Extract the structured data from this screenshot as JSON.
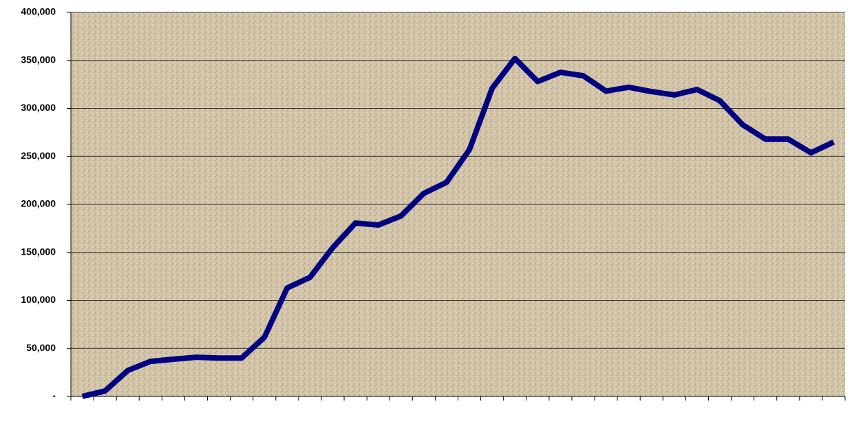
{
  "chart_data": {
    "type": "line",
    "categories": [
      null,
      null,
      null,
      null,
      null,
      null,
      null,
      null,
      null,
      null,
      null,
      null,
      null,
      null,
      null,
      null,
      null,
      null,
      null,
      null,
      null,
      null,
      null,
      null,
      null,
      null,
      null,
      null,
      null,
      null,
      null,
      null,
      null,
      null
    ],
    "series": [
      {
        "color": "#000080",
        "values": [
          0,
          5700,
          27000,
          36500,
          38700,
          40800,
          40000,
          40000,
          61600,
          113000,
          124000,
          155000,
          180600,
          178500,
          188000,
          211500,
          223000,
          257000,
          321000,
          352000,
          328000,
          337600,
          334000,
          318000,
          322000,
          317500,
          314000,
          319700,
          308000,
          283000,
          268000,
          268000,
          253800,
          265000
        ]
      }
    ],
    "ylim": [
      0,
      400000
    ],
    "yticks": [
      {
        "value": 0,
        "label": "-"
      },
      {
        "value": 50000,
        "label": "50,000"
      },
      {
        "value": 100000,
        "label": "100,000"
      },
      {
        "value": 150000,
        "label": "150,000"
      },
      {
        "value": 200000,
        "label": "200,000"
      },
      {
        "value": 250000,
        "label": "250,000"
      },
      {
        "value": 300000,
        "label": "300,000"
      },
      {
        "value": 350000,
        "label": "350,000"
      },
      {
        "value": 400000,
        "label": "400,000"
      }
    ],
    "grid": true
  }
}
